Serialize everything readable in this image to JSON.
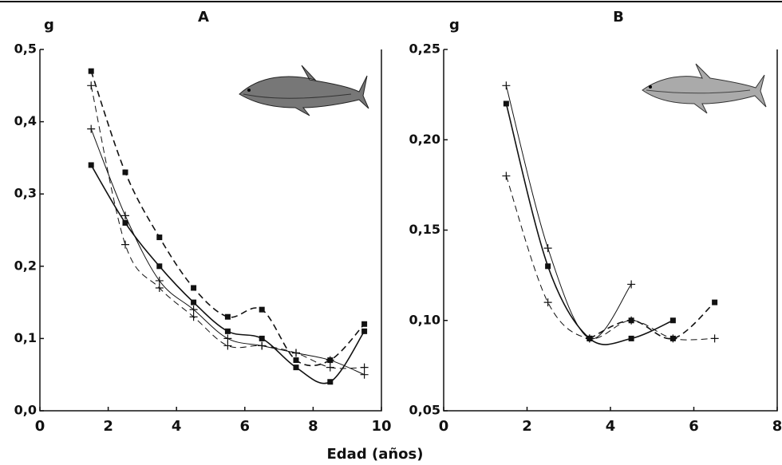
{
  "xlabel": "Edad (años)",
  "chart_data": [
    {
      "type": "line",
      "title": "A",
      "ylabel": "g",
      "xlim": [
        0,
        10
      ],
      "xticks": [
        0,
        2,
        4,
        6,
        8,
        10
      ],
      "ylim": [
        0,
        0.5
      ],
      "yticks": [
        {
          "value": 0,
          "label": "0,0"
        },
        {
          "value": 0.1,
          "label": "0,1"
        },
        {
          "value": 0.2,
          "label": "0,2"
        },
        {
          "value": 0.3,
          "label": "0,3"
        },
        {
          "value": 0.4,
          "label": "0,4"
        },
        {
          "value": 0.5,
          "label": "0,5"
        }
      ],
      "series": [
        {
          "marker": "square",
          "dash": true,
          "color": "#111111",
          "x": [
            1.5,
            2.5,
            3.5,
            4.5,
            5.5,
            6.5,
            7.5,
            8.5,
            9.5
          ],
          "values": [
            0.47,
            0.33,
            0.24,
            0.17,
            0.13,
            0.14,
            0.07,
            0.07,
            0.12
          ]
        },
        {
          "marker": "plus",
          "dash": true,
          "color": "#111111",
          "x": [
            1.5,
            2.5,
            3.5,
            4.5,
            5.5,
            6.5,
            7.5,
            8.5,
            9.5
          ],
          "values": [
            0.45,
            0.23,
            0.17,
            0.13,
            0.09,
            0.09,
            0.08,
            0.06,
            0.06
          ]
        },
        {
          "marker": "square",
          "dash": false,
          "color": "#111111",
          "x": [
            1.5,
            2.5,
            3.5,
            4.5,
            5.5,
            6.5,
            7.5,
            8.5,
            9.5
          ],
          "values": [
            0.34,
            0.26,
            0.2,
            0.15,
            0.11,
            0.1,
            0.06,
            0.04,
            0.11
          ]
        },
        {
          "marker": "plus",
          "dash": false,
          "color": "#111111",
          "x": [
            1.5,
            2.5,
            3.5,
            4.5,
            5.5,
            6.5,
            7.5,
            8.5,
            9.5
          ],
          "values": [
            0.39,
            0.27,
            0.18,
            0.14,
            0.1,
            0.09,
            0.08,
            0.07,
            0.05
          ]
        }
      ]
    },
    {
      "type": "line",
      "title": "B",
      "ylabel": "g",
      "xlim": [
        0,
        8
      ],
      "xticks": [
        0,
        2,
        4,
        6,
        8
      ],
      "ylim": [
        0.05,
        0.25
      ],
      "yticks": [
        {
          "value": 0.05,
          "label": "0,05"
        },
        {
          "value": 0.1,
          "label": "0,10"
        },
        {
          "value": 0.15,
          "label": "0,15"
        },
        {
          "value": 0.2,
          "label": "0,20"
        },
        {
          "value": 0.25,
          "label": "0,25"
        }
      ],
      "series": [
        {
          "marker": "plus",
          "dash": false,
          "color": "#111111",
          "x": [
            1.5,
            2.5,
            3.5,
            4.5
          ],
          "values": [
            0.23,
            0.14,
            0.09,
            0.12
          ]
        },
        {
          "marker": "square",
          "dash": false,
          "color": "#111111",
          "x": [
            1.5,
            2.5,
            3.5,
            4.5,
            5.5
          ],
          "values": [
            0.22,
            0.13,
            0.09,
            0.09,
            0.1
          ]
        },
        {
          "marker": "plus",
          "dash": true,
          "color": "#111111",
          "x": [
            1.5,
            2.5,
            3.5,
            4.5,
            5.5,
            6.5
          ],
          "values": [
            0.18,
            0.11,
            0.09,
            0.1,
            0.09,
            0.09
          ]
        },
        {
          "marker": "square",
          "dash": true,
          "color": "#111111",
          "x": [
            3.5,
            4.5,
            5.5,
            6.5
          ],
          "values": [
            0.09,
            0.1,
            0.09,
            0.11
          ]
        }
      ]
    }
  ]
}
